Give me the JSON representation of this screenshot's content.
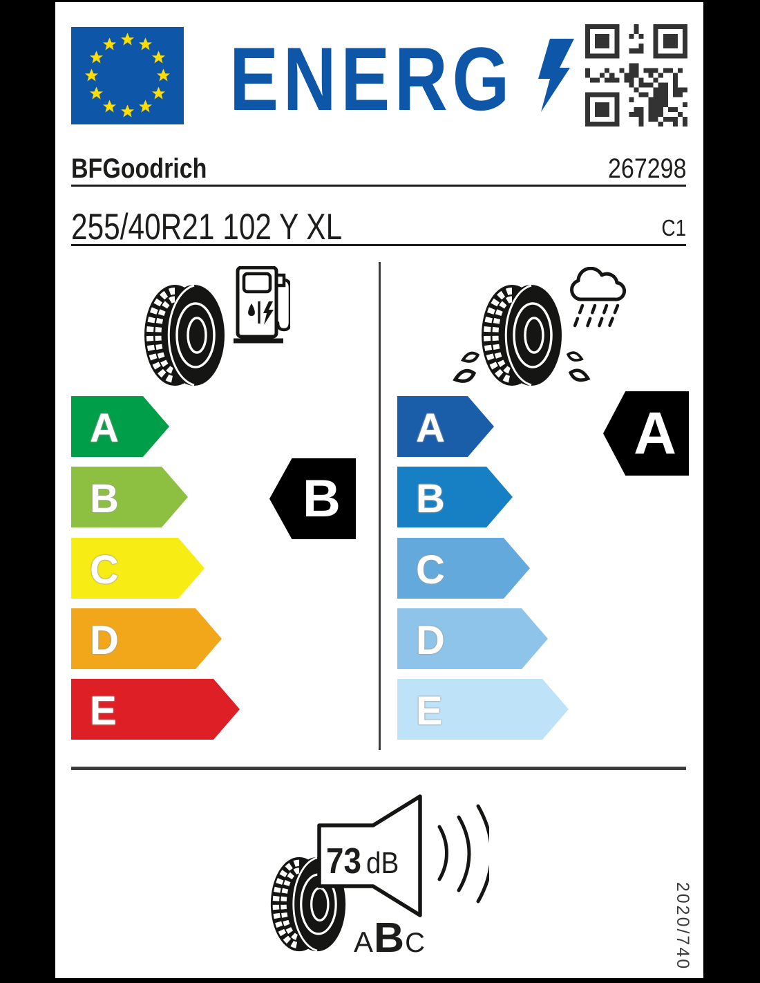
{
  "header": {
    "energ_text": "ENERG",
    "brand": "BFGoodrich",
    "product_code": "267298",
    "tire_size": "255/40R21 102 Y XL",
    "tire_class": "C1"
  },
  "fuel_efficiency": {
    "icon": "tire-fuel-pump-icon",
    "rating": "B",
    "scale": [
      {
        "grade": "A",
        "color": "#009E48"
      },
      {
        "grade": "B",
        "color": "#8DC041"
      },
      {
        "grade": "C",
        "color": "#F7EC13"
      },
      {
        "grade": "D",
        "color": "#F2A71B"
      },
      {
        "grade": "E",
        "color": "#DF1F26"
      }
    ]
  },
  "wet_grip": {
    "icon": "tire-rain-cloud-icon",
    "rating": "A",
    "scale": [
      {
        "grade": "A",
        "color": "#1A5EA9"
      },
      {
        "grade": "B",
        "color": "#1780C4"
      },
      {
        "grade": "C",
        "color": "#64A9DC"
      },
      {
        "grade": "D",
        "color": "#8FC4EA"
      },
      {
        "grade": "E",
        "color": "#BEE3F8"
      }
    ]
  },
  "noise": {
    "value": "73",
    "unit": "dB",
    "class_a": "A",
    "class_b": "B",
    "class_c": "C",
    "rating": "B"
  },
  "regulation": "2020/740",
  "colors": {
    "eu_blue": "#0E56A8",
    "star_yellow": "#FFDD00",
    "ink": "#1d1d1b",
    "line_gray": "#3C3C3B"
  }
}
